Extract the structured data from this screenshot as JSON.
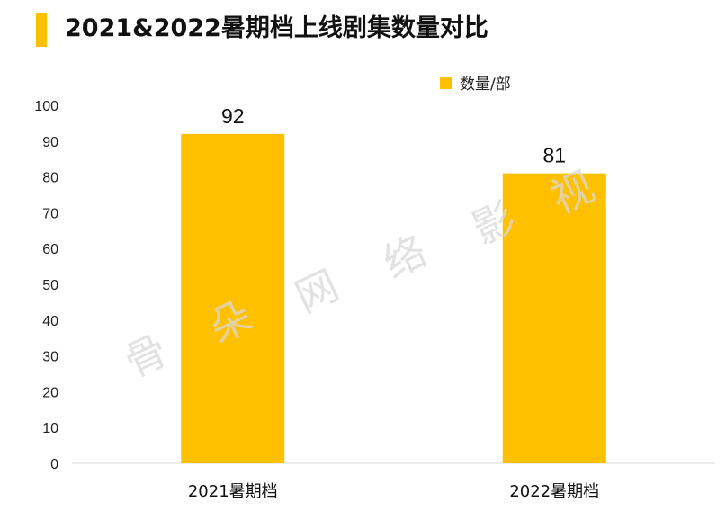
{
  "title": "2021&2022暑期档上线剧集数量对比",
  "watermark": [
    "骨",
    "朵",
    "网",
    "络",
    "影",
    "视"
  ],
  "colors": {
    "accent": "#FFC000",
    "bar": "#FFC000",
    "axis": "#d9d9d9",
    "text": "#222222"
  },
  "chart_data": {
    "type": "bar",
    "categories": [
      "2021暑期档",
      "2022暑期档"
    ],
    "series": [
      {
        "name": "数量/部",
        "values": [
          92,
          81
        ]
      }
    ],
    "ylim": [
      0,
      100
    ],
    "yticks": [
      0,
      10,
      20,
      30,
      40,
      50,
      60,
      70,
      80,
      90,
      100
    ],
    "grid": false,
    "legend": "top-right",
    "data_labels": true
  }
}
